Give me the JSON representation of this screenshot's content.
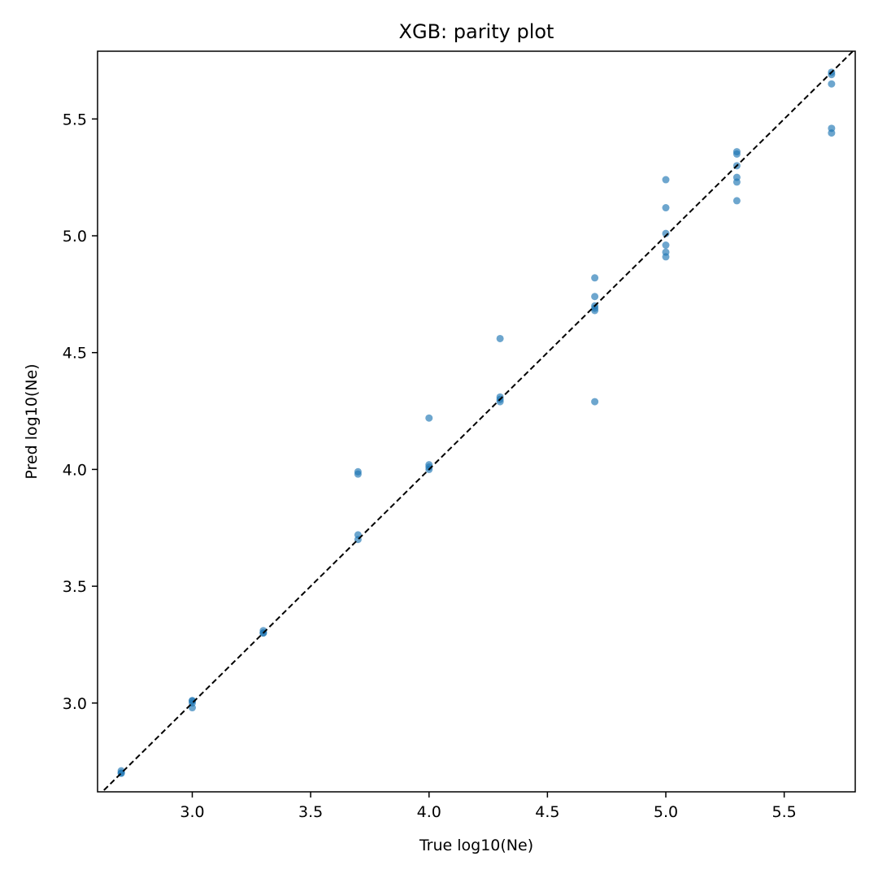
{
  "chart_data": {
    "type": "scatter",
    "title": "XGB: parity plot",
    "xlabel": "True log10(Ne)",
    "ylabel": "Pred log10(Ne)",
    "xlim": [
      2.6,
      5.8
    ],
    "ylim": [
      2.62,
      5.79
    ],
    "x_ticks": [
      3.0,
      3.5,
      4.0,
      4.5,
      5.0,
      5.5
    ],
    "x_tick_labels": [
      "3.0",
      "3.5",
      "4.0",
      "4.5",
      "5.0",
      "5.5"
    ],
    "y_ticks": [
      3.0,
      3.5,
      4.0,
      4.5,
      5.0,
      5.5
    ],
    "y_tick_labels": [
      "3.0",
      "3.5",
      "4.0",
      "4.5",
      "5.0",
      "5.5"
    ],
    "grid": false,
    "point_color": "#1f77b4",
    "reference_line": {
      "style": "dashed",
      "color": "#000000",
      "from": [
        2.6,
        2.6
      ],
      "to": [
        5.8,
        5.8
      ]
    },
    "series": [
      {
        "points": [
          [
            2.7,
            2.7
          ],
          [
            2.7,
            2.71
          ],
          [
            2.7,
            2.7
          ],
          [
            3.0,
            2.98
          ],
          [
            3.0,
            3.0
          ],
          [
            3.0,
            3.01
          ],
          [
            3.0,
            3.01
          ],
          [
            3.3,
            3.3
          ],
          [
            3.3,
            3.31
          ],
          [
            3.3,
            3.3
          ],
          [
            3.7,
            3.7
          ],
          [
            3.7,
            3.72
          ],
          [
            3.7,
            3.98
          ],
          [
            3.7,
            3.99
          ],
          [
            4.0,
            4.0
          ],
          [
            4.0,
            4.01
          ],
          [
            4.0,
            4.02
          ],
          [
            4.0,
            4.22
          ],
          [
            4.3,
            4.29
          ],
          [
            4.3,
            4.3
          ],
          [
            4.3,
            4.31
          ],
          [
            4.3,
            4.56
          ],
          [
            4.7,
            4.29
          ],
          [
            4.7,
            4.68
          ],
          [
            4.7,
            4.69
          ],
          [
            4.7,
            4.7
          ],
          [
            4.7,
            4.74
          ],
          [
            4.7,
            4.82
          ],
          [
            5.0,
            4.91
          ],
          [
            5.0,
            4.93
          ],
          [
            5.0,
            4.96
          ],
          [
            5.0,
            5.01
          ],
          [
            5.0,
            5.12
          ],
          [
            5.0,
            5.24
          ],
          [
            5.3,
            5.15
          ],
          [
            5.3,
            5.23
          ],
          [
            5.3,
            5.25
          ],
          [
            5.3,
            5.3
          ],
          [
            5.3,
            5.35
          ],
          [
            5.3,
            5.36
          ],
          [
            5.7,
            5.44
          ],
          [
            5.7,
            5.46
          ],
          [
            5.7,
            5.65
          ],
          [
            5.7,
            5.69
          ],
          [
            5.7,
            5.7
          ]
        ]
      }
    ]
  }
}
